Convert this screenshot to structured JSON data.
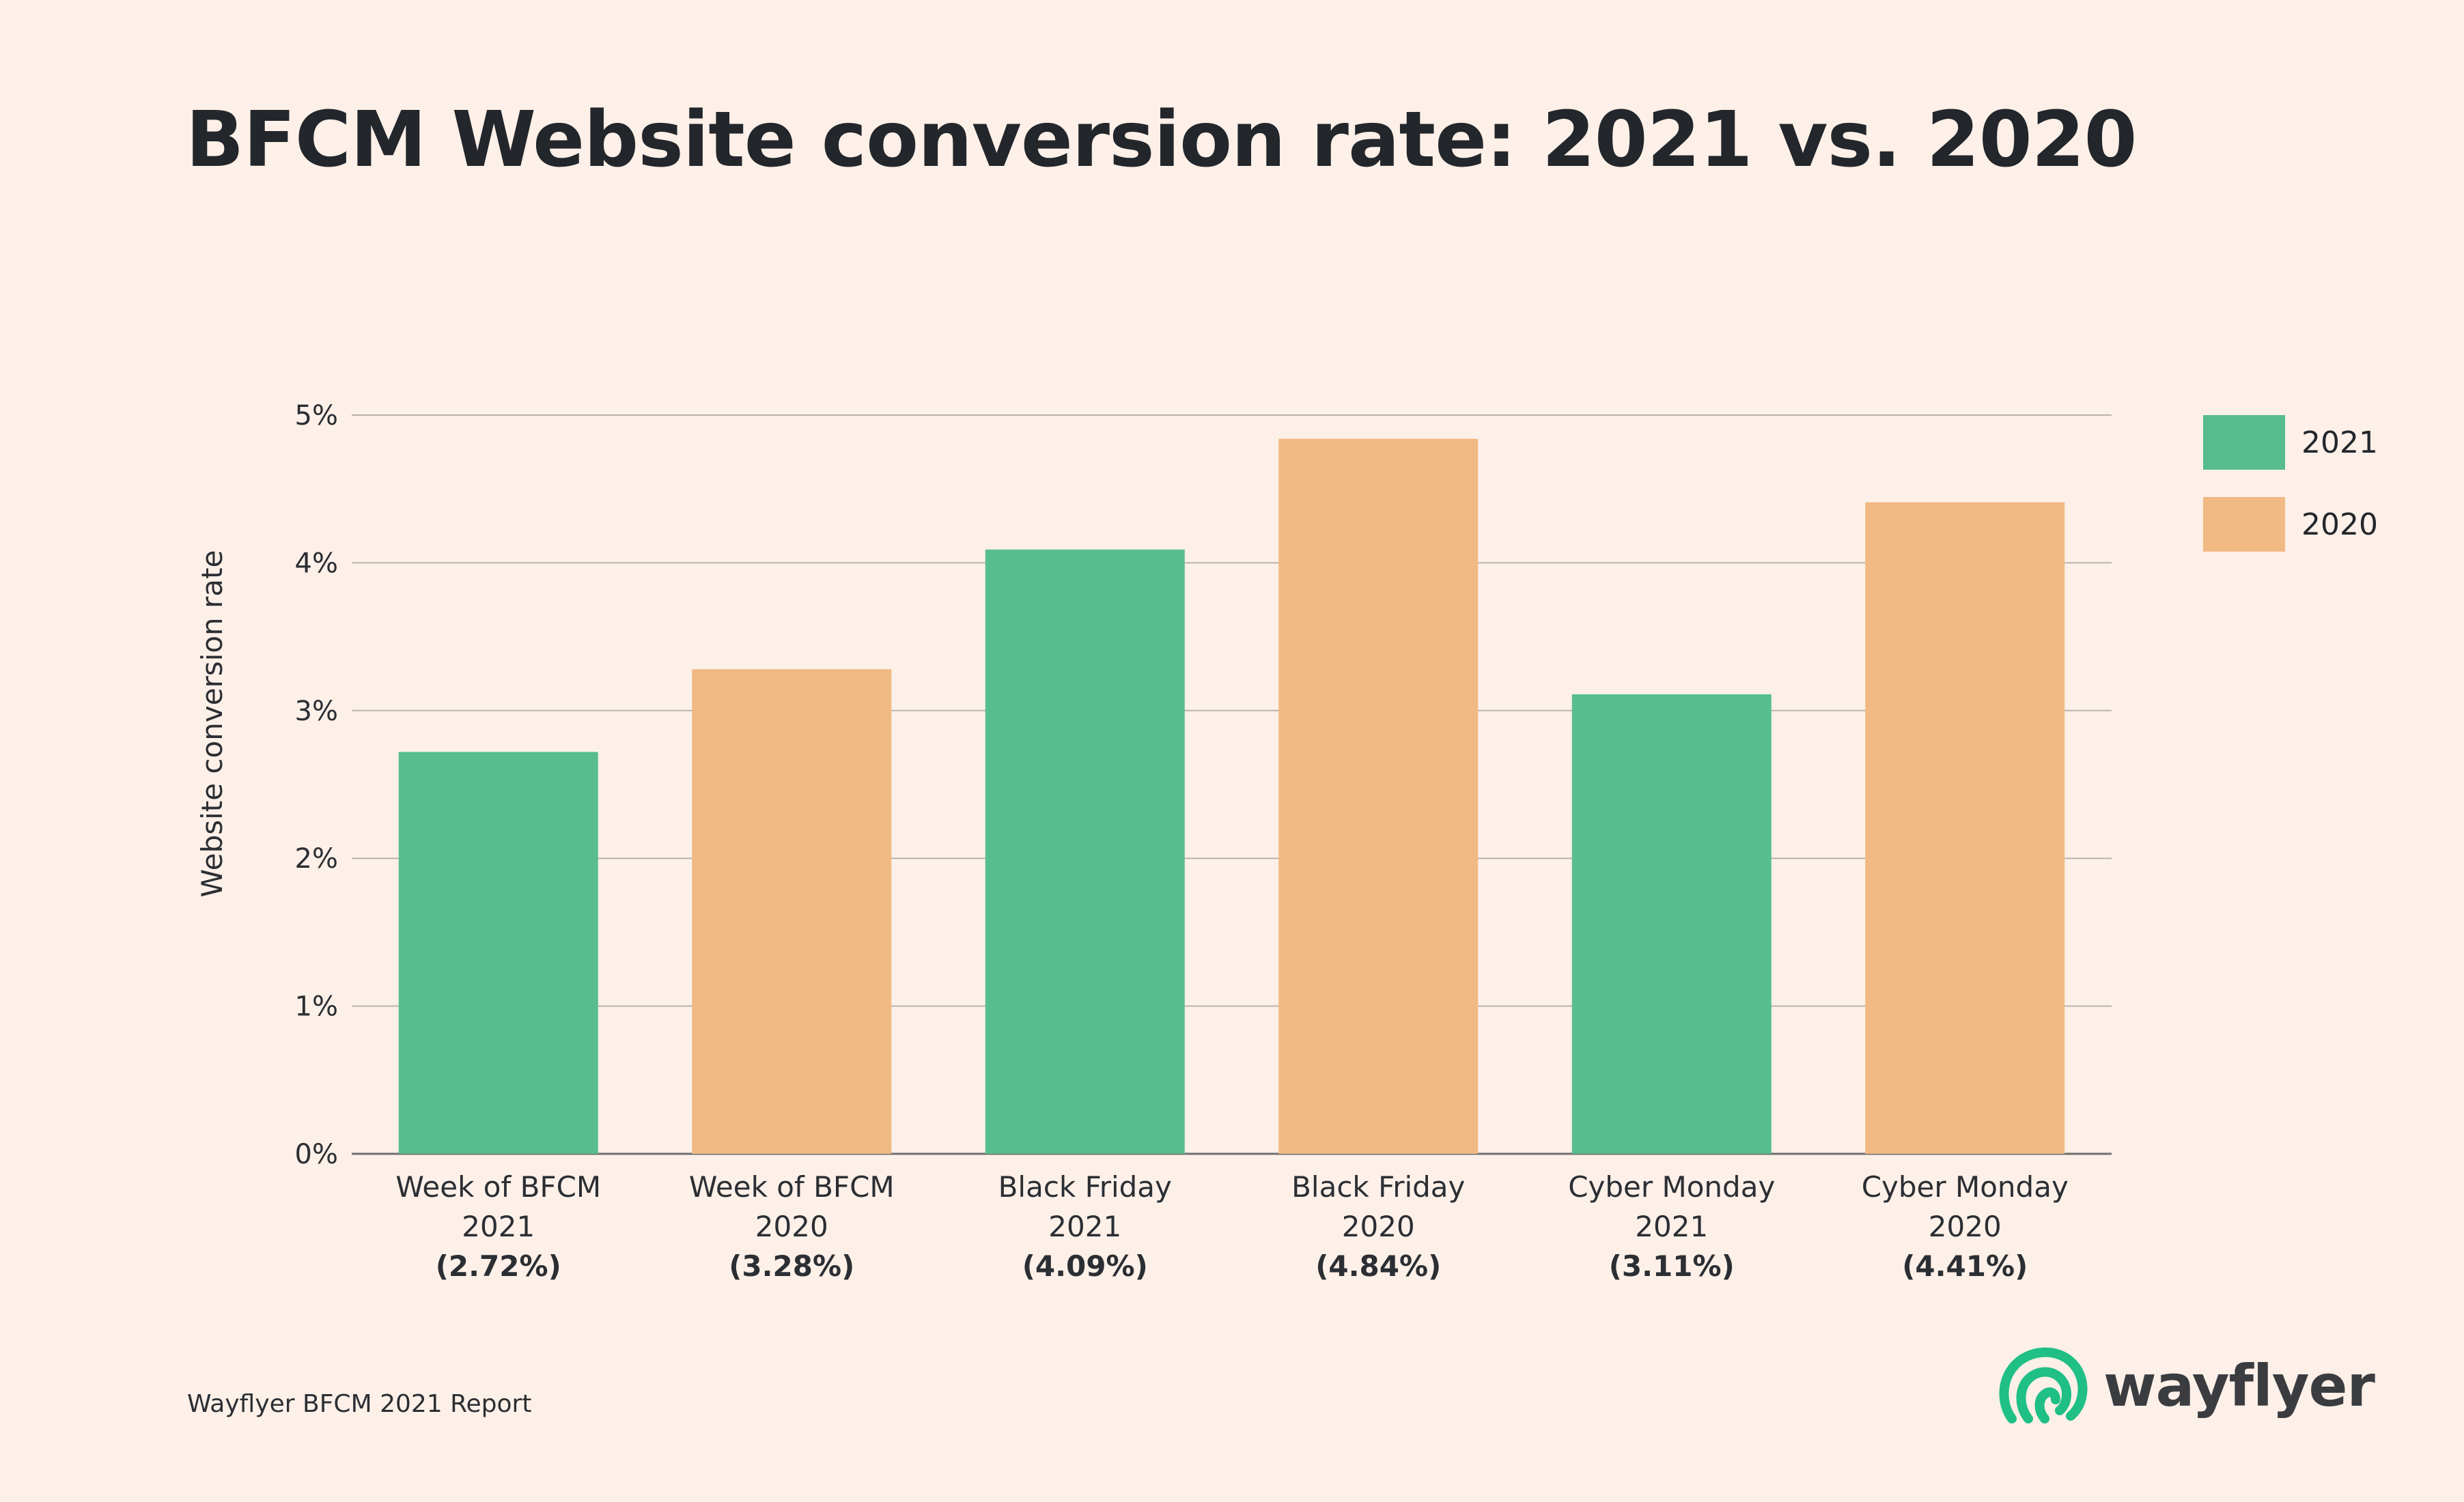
{
  "title": "BFCM Website conversion rate: 2021 vs. 2020",
  "footer": "Wayflyer BFCM 2021 Report",
  "brand": {
    "name": "wayflyer",
    "icon": "wayflyer-logo-icon",
    "color": "#1fbf85"
  },
  "legend": [
    {
      "label": "2021",
      "color": "#57bd8e"
    },
    {
      "label": "2020",
      "color": "#f1b984"
    }
  ],
  "chart_data": {
    "type": "bar",
    "title": "BFCM Website conversion rate: 2021 vs. 2020",
    "ylabel": "Website conversion rate",
    "xlabel": "",
    "ylim": [
      0,
      5
    ],
    "yticks": [
      "0%",
      "1%",
      "2%",
      "3%",
      "4%",
      "5%"
    ],
    "grid": true,
    "legend_position": "top-right",
    "categories": [
      {
        "line1": "Week of BFCM",
        "line2": "2021",
        "value_label": "(2.72%)"
      },
      {
        "line1": "Week of BFCM",
        "line2": "2020",
        "value_label": "(3.28%)"
      },
      {
        "line1": "Black Friday",
        "line2": "2021",
        "value_label": "(4.09%)"
      },
      {
        "line1": "Black Friday",
        "line2": "2020",
        "value_label": "(4.84%)"
      },
      {
        "line1": "Cyber Monday",
        "line2": "2021",
        "value_label": "(3.11%)"
      },
      {
        "line1": "Cyber Monday",
        "line2": "2020",
        "value_label": "(4.41%)"
      }
    ],
    "values": [
      2.72,
      3.28,
      4.09,
      4.84,
      3.11,
      4.41
    ],
    "series_of_bar": [
      "2021",
      "2020",
      "2021",
      "2020",
      "2021",
      "2020"
    ]
  }
}
